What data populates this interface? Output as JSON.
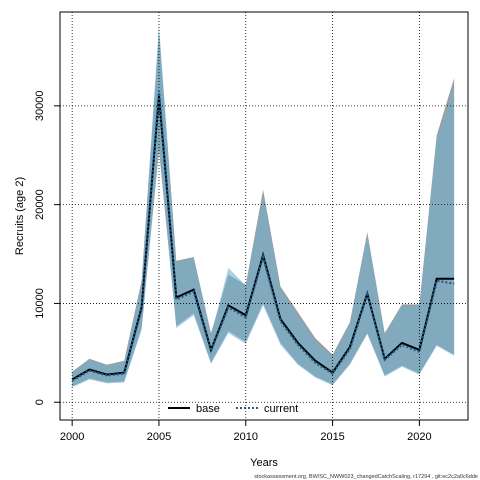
{
  "chart_data": {
    "type": "line",
    "xlabel": "Years",
    "ylabel": "Recruits (age 2)",
    "xlim": [
      1999.3,
      2022.8
    ],
    "ylim": [
      -1800,
      39500
    ],
    "x_ticks": [
      2000,
      2005,
      2010,
      2015,
      2020
    ],
    "y_ticks": [
      0,
      10000,
      20000,
      30000
    ],
    "grid": true,
    "legend_position": "bottom",
    "x": [
      2000,
      2001,
      2002,
      2003,
      2004,
      2005,
      2006,
      2007,
      2008,
      2009,
      2010,
      2011,
      2012,
      2013,
      2014,
      2015,
      2016,
      2017,
      2018,
      2019,
      2020,
      2021,
      2022
    ],
    "series": [
      {
        "name": "base",
        "style": "solid",
        "color": "#000000",
        "band_color": "#8c8c8c",
        "values": [
          2300,
          3300,
          2800,
          3000,
          9600,
          31000,
          10600,
          11400,
          5300,
          9800,
          8800,
          14900,
          8400,
          6000,
          4200,
          3000,
          5600,
          11000,
          4400,
          6000,
          5300,
          12500,
          12500
        ],
        "lower": [
          1600,
          2400,
          2000,
          2100,
          7500,
          25500,
          7700,
          9000,
          4000,
          7200,
          6100,
          10000,
          6000,
          3900,
          2600,
          1800,
          3900,
          7000,
          2700,
          3700,
          2900,
          5800,
          4800
        ],
        "upper": [
          3100,
          4400,
          3800,
          4200,
          12300,
          37500,
          14300,
          14700,
          7000,
          12900,
          11900,
          21500,
          11700,
          9100,
          6500,
          4800,
          8100,
          17200,
          7000,
          9900,
          9900,
          27000,
          32800
        ]
      },
      {
        "name": "current",
        "style": "dotted",
        "color": "#1f5e8c",
        "band_color": "#6fb2d6",
        "values": [
          2200,
          3200,
          2700,
          2900,
          9400,
          31500,
          10400,
          11200,
          5200,
          9600,
          8600,
          14700,
          8200,
          5800,
          4000,
          2900,
          5400,
          10900,
          4300,
          5800,
          5100,
          12300,
          12000
        ],
        "lower": [
          1500,
          2300,
          1900,
          2000,
          7300,
          25800,
          7500,
          8800,
          3900,
          7000,
          5900,
          9800,
          5800,
          3800,
          2500,
          1700,
          3800,
          6900,
          2600,
          3600,
          2800,
          5700,
          4700
        ],
        "upper": [
          3000,
          4300,
          3700,
          4100,
          12100,
          38200,
          14100,
          14600,
          6800,
          13600,
          11800,
          21000,
          11400,
          8800,
          6200,
          4600,
          7900,
          17000,
          6800,
          9700,
          9800,
          26600,
          32000
        ]
      }
    ]
  },
  "footnote": "stockassessment.org, BW/SC_NWW023_changedCatchScaling, r17294 , git:ec2c2a0c6dde"
}
